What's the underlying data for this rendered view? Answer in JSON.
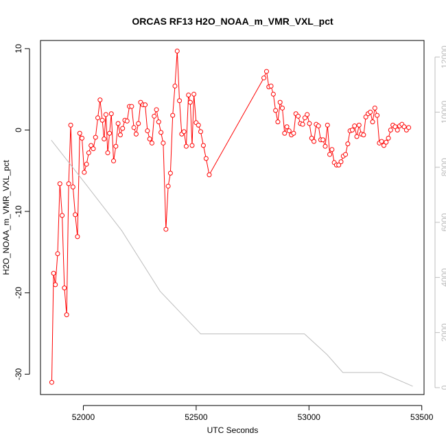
{
  "chart_data": {
    "type": "line",
    "title": "ORCAS RF13 H2O_NOAA_m_VMR_VXL_pct",
    "xlabel": "UTC Seconds",
    "ylabel": "H2O_NOAA_m_VMR_VXL_pct",
    "xlim": [
      51810,
      53510
    ],
    "ylim": [
      -32.5,
      11
    ],
    "y2lim": [
      -250,
      12600
    ],
    "x_ticks": [
      52000,
      52500,
      53000,
      53500
    ],
    "y_ticks": [
      -30,
      -20,
      -10,
      0,
      10
    ],
    "y2_ticks": [
      0,
      2000,
      4000,
      6000,
      8000,
      10000,
      12000
    ],
    "grid": false,
    "colors": {
      "primary": "#ff0000",
      "secondary": "#bdbdbd",
      "axis": "#000000"
    },
    "series": [
      {
        "axis": "left",
        "style": "line+points",
        "color": "#ff0000",
        "points": [
          [
            51860,
            -31.0
          ],
          [
            51868,
            -17.6
          ],
          [
            51876,
            -19.0
          ],
          [
            51886,
            -15.2
          ],
          [
            51896,
            -6.6
          ],
          [
            51906,
            -10.5
          ],
          [
            51916,
            -19.4
          ],
          [
            51926,
            -22.7
          ],
          [
            51935,
            -6.6
          ],
          [
            51944,
            0.6
          ],
          [
            51954,
            -7.0
          ],
          [
            51964,
            -10.4
          ],
          [
            51974,
            -13.1
          ],
          [
            51984,
            -0.4
          ],
          [
            51994,
            -1.0
          ],
          [
            52004,
            -5.2
          ],
          [
            52014,
            -4.2
          ],
          [
            52024,
            -2.8
          ],
          [
            52034,
            -1.9
          ],
          [
            52044,
            -2.3
          ],
          [
            52054,
            -0.9
          ],
          [
            52064,
            1.5
          ],
          [
            52074,
            3.7
          ],
          [
            52084,
            1.2
          ],
          [
            52092,
            -1.1
          ],
          [
            52100,
            1.9
          ],
          [
            52108,
            -2.8
          ],
          [
            52116,
            -0.4
          ],
          [
            52124,
            2.0
          ],
          [
            52134,
            -3.8
          ],
          [
            52144,
            -2.0
          ],
          [
            52154,
            0.8
          ],
          [
            52164,
            -0.6
          ],
          [
            52174,
            0.2
          ],
          [
            52184,
            1.2
          ],
          [
            52194,
            1.1
          ],
          [
            52204,
            2.9
          ],
          [
            52214,
            2.9
          ],
          [
            52224,
            0.3
          ],
          [
            52234,
            -0.5
          ],
          [
            52244,
            0.8
          ],
          [
            52254,
            3.4
          ],
          [
            52264,
            3.1
          ],
          [
            52274,
            3.1
          ],
          [
            52284,
            -0.1
          ],
          [
            52294,
            -1.1
          ],
          [
            52304,
            -1.6
          ],
          [
            52314,
            1.7
          ],
          [
            52324,
            2.5
          ],
          [
            52334,
            1.0
          ],
          [
            52344,
            -0.3
          ],
          [
            52354,
            -1.6
          ],
          [
            52366,
            -12.2
          ],
          [
            52376,
            -6.9
          ],
          [
            52386,
            -5.3
          ],
          [
            52396,
            1.8
          ],
          [
            52406,
            5.4
          ],
          [
            52416,
            9.7
          ],
          [
            52426,
            3.6
          ],
          [
            52436,
            -0.5
          ],
          [
            52446,
            -0.2
          ],
          [
            52456,
            -2.0
          ],
          [
            52466,
            4.3
          ],
          [
            52474,
            3.4
          ],
          [
            52482,
            -1.9
          ],
          [
            52490,
            4.4
          ],
          [
            52500,
            0.9
          ],
          [
            52510,
            0.6
          ],
          [
            52520,
            -0.2
          ],
          [
            52532,
            -1.9
          ],
          [
            52544,
            -3.5
          ],
          [
            52558,
            -5.5
          ],
          [
            52800,
            6.4
          ],
          [
            52812,
            7.2
          ],
          [
            52822,
            5.3
          ],
          [
            52832,
            5.4
          ],
          [
            52842,
            4.4
          ],
          [
            52852,
            2.4
          ],
          [
            52862,
            1.0
          ],
          [
            52872,
            3.4
          ],
          [
            52882,
            2.7
          ],
          [
            52892,
            -0.4
          ],
          [
            52902,
            0.4
          ],
          [
            52912,
            -0.1
          ],
          [
            52922,
            -0.6
          ],
          [
            52932,
            -0.4
          ],
          [
            52942,
            2.0
          ],
          [
            52952,
            1.7
          ],
          [
            52962,
            0.8
          ],
          [
            52972,
            0.7
          ],
          [
            52982,
            1.5
          ],
          [
            52992,
            1.9
          ],
          [
            53002,
            0.8
          ],
          [
            53012,
            -1.0
          ],
          [
            53022,
            -1.4
          ],
          [
            53032,
            0.7
          ],
          [
            53042,
            0.5
          ],
          [
            53052,
            -1.2
          ],
          [
            53062,
            -1.2
          ],
          [
            53072,
            -2.0
          ],
          [
            53082,
            0.6
          ],
          [
            53092,
            -3.0
          ],
          [
            53102,
            -2.4
          ],
          [
            53112,
            -4.0
          ],
          [
            53122,
            -4.3
          ],
          [
            53132,
            -4.3
          ],
          [
            53142,
            -3.9
          ],
          [
            53152,
            -3.2
          ],
          [
            53162,
            -3.0
          ],
          [
            53172,
            -1.7
          ],
          [
            53182,
            -0.1
          ],
          [
            53192,
            0.0
          ],
          [
            53202,
            0.5
          ],
          [
            53212,
            -0.8
          ],
          [
            53222,
            0.6
          ],
          [
            53232,
            -0.5
          ],
          [
            53242,
            -0.6
          ],
          [
            53252,
            1.6
          ],
          [
            53262,
            2.0
          ],
          [
            53272,
            2.2
          ],
          [
            53282,
            1.0
          ],
          [
            53292,
            2.7
          ],
          [
            53302,
            1.8
          ],
          [
            53312,
            -1.6
          ],
          [
            53322,
            -1.4
          ],
          [
            53332,
            -1.9
          ],
          [
            53342,
            -1.5
          ],
          [
            53352,
            -1.0
          ],
          [
            53362,
            0.0
          ],
          [
            53372,
            0.6
          ],
          [
            53382,
            0.4
          ],
          [
            53392,
            0.0
          ],
          [
            53402,
            0.5
          ],
          [
            53412,
            0.7
          ],
          [
            53422,
            0.4
          ],
          [
            53432,
            0.0
          ],
          [
            53442,
            0.3
          ]
        ]
      },
      {
        "axis": "right",
        "style": "line",
        "color": "#bdbdbd",
        "points": [
          [
            51858,
            8980
          ],
          [
            52000,
            7500
          ],
          [
            52170,
            5700
          ],
          [
            52340,
            3500
          ],
          [
            52520,
            1950
          ],
          [
            52980,
            1950
          ],
          [
            53080,
            1200
          ],
          [
            53150,
            550
          ],
          [
            53320,
            550
          ],
          [
            53460,
            50
          ]
        ]
      }
    ]
  }
}
